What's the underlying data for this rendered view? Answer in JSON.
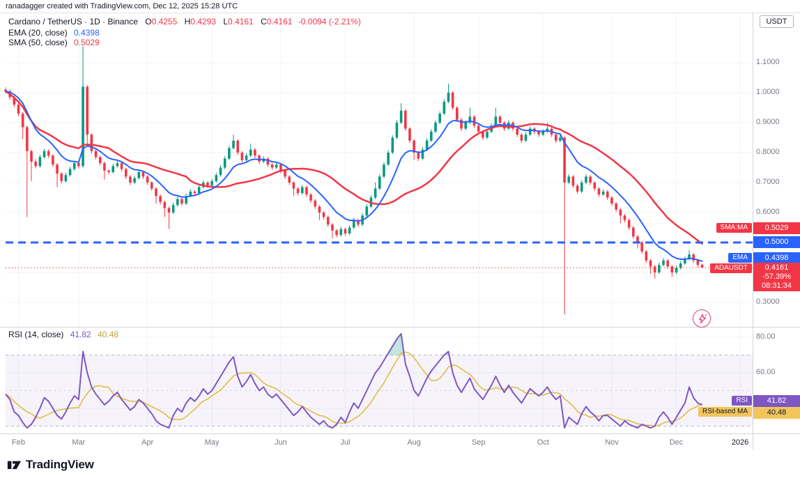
{
  "credit_bar": {
    "text": "ranadagger created with TradingView.com, Dec 12, 2025 15:28 UTC"
  },
  "symbol_row": {
    "title": "Cardano / TetherUS · 1D · Binance",
    "o_label": "O",
    "o": "0.4255",
    "h_label": "H",
    "h": "0.4293",
    "l_label": "L",
    "l": "0.4161",
    "c_label": "C",
    "c": "0.4161",
    "change": "-0.0094 (-2.21%)"
  },
  "indicators": {
    "ema": {
      "label": "EMA (20, close)",
      "value": "0.4398"
    },
    "sma": {
      "label": "SMA (50, close)",
      "value": "0.5029"
    },
    "rsi": {
      "label": "RSI (14, close)",
      "value": "41.82",
      "ma_value": "40.48"
    }
  },
  "price_axis": {
    "currency": "USDT",
    "labels": [
      {
        "text": "1.1000",
        "value": 1.1
      },
      {
        "text": "1.0000",
        "value": 1.0
      },
      {
        "text": "0.9000",
        "value": 0.9
      },
      {
        "text": "0.8000",
        "value": 0.8
      },
      {
        "text": "0.7000",
        "value": 0.7
      },
      {
        "text": "0.6000",
        "value": 0.6
      },
      {
        "text": "0.3000",
        "value": 0.3
      }
    ],
    "tags": {
      "sma": {
        "label": "SMA:MA",
        "value": "0.5029"
      },
      "level": {
        "value": "0.5000"
      },
      "ema": {
        "label": "EMA",
        "value": "0.4398"
      },
      "price": {
        "label": "ADAUSDT",
        "value": "0.4161",
        "percent": "-57.39%",
        "countdown": "08:31:34"
      }
    }
  },
  "rsi_axis": {
    "labels": [
      {
        "text": "80.00",
        "value": 80
      },
      {
        "text": "60.00",
        "value": 60
      }
    ],
    "tags": {
      "rsi": {
        "label": "RSI",
        "value": "41.82"
      },
      "ma": {
        "label": "RSI-based MA",
        "value": "40.48"
      }
    }
  },
  "time_axis": {
    "months": [
      "Feb",
      "Mar",
      "Apr",
      "May",
      "Jun",
      "Jul",
      "Aug",
      "Sep",
      "Oct",
      "Nov",
      "Dec"
    ],
    "year": "2026"
  },
  "footer": {
    "logo_text": "TradingView"
  },
  "colors": {
    "up": "#089981",
    "down": "#f23645",
    "ema": "#2962ff",
    "sma": "#f23645",
    "rsi": "#7e57c2",
    "rsi_ma": "#e2b93b",
    "support_line": "#2962ff",
    "grid": "#f0f3fa",
    "band_fill": "rgba(126,87,194,0.07)",
    "overbought_fill": "rgba(8,153,129,0.25)"
  },
  "chart_data": {
    "type": "candlestick",
    "title": "Cardano / TetherUS 1D Binance with EMA(20), SMA(50), RSI(14)",
    "price_ylim": [
      0.26,
      1.27
    ],
    "rsi_bands": [
      70,
      50,
      30
    ],
    "support_level": 0.5,
    "last_price": 0.4161,
    "indicator_values": {
      "ema20": 0.4398,
      "sma50": 0.5029,
      "rsi14": 41.82,
      "rsi_ma": 40.48
    },
    "month_start_indices": [
      3,
      17,
      33,
      48,
      64,
      79,
      95,
      110,
      125,
      141,
      156
    ],
    "candles": [
      [
        1.01,
        1.018,
        0.997,
        1.005
      ],
      [
        1.005,
        1.01,
        0.977,
        0.985
      ],
      [
        0.985,
        0.99,
        0.952,
        0.96
      ],
      [
        0.96,
        0.968,
        0.922,
        0.93
      ],
      [
        0.93,
        0.935,
        0.845,
        0.885
      ],
      [
        0.885,
        0.89,
        0.585,
        0.805
      ],
      [
        0.805,
        0.81,
        0.705,
        0.77
      ],
      [
        0.77,
        0.778,
        0.747,
        0.755
      ],
      [
        0.755,
        0.793,
        0.75,
        0.785
      ],
      [
        0.785,
        0.813,
        0.78,
        0.805
      ],
      [
        0.805,
        0.812,
        0.782,
        0.79
      ],
      [
        0.79,
        0.795,
        0.752,
        0.76
      ],
      [
        0.76,
        0.765,
        0.685,
        0.73
      ],
      [
        0.73,
        0.735,
        0.697,
        0.705
      ],
      [
        0.705,
        0.733,
        0.7,
        0.725
      ],
      [
        0.725,
        0.753,
        0.72,
        0.745
      ],
      [
        0.745,
        0.773,
        0.74,
        0.765
      ],
      [
        0.765,
        0.77,
        0.747,
        0.755
      ],
      [
        0.755,
        1.155,
        0.75,
        1.02
      ],
      [
        1.02,
        1.025,
        0.82,
        0.86
      ],
      [
        0.86,
        0.865,
        0.797,
        0.805
      ],
      [
        0.805,
        0.81,
        0.777,
        0.785
      ],
      [
        0.785,
        0.79,
        0.757,
        0.765
      ],
      [
        0.765,
        0.77,
        0.71,
        0.74
      ],
      [
        0.74,
        0.743,
        0.727,
        0.735
      ],
      [
        0.735,
        0.763,
        0.73,
        0.755
      ],
      [
        0.755,
        0.773,
        0.75,
        0.765
      ],
      [
        0.765,
        0.77,
        0.737,
        0.745
      ],
      [
        0.745,
        0.75,
        0.712,
        0.72
      ],
      [
        0.72,
        0.725,
        0.692,
        0.7
      ],
      [
        0.7,
        0.723,
        0.695,
        0.715
      ],
      [
        0.715,
        0.743,
        0.71,
        0.735
      ],
      [
        0.735,
        0.74,
        0.712,
        0.72
      ],
      [
        0.72,
        0.725,
        0.692,
        0.7
      ],
      [
        0.7,
        0.705,
        0.672,
        0.68
      ],
      [
        0.68,
        0.685,
        0.63,
        0.655
      ],
      [
        0.655,
        0.66,
        0.627,
        0.635
      ],
      [
        0.635,
        0.64,
        0.585,
        0.615
      ],
      [
        0.615,
        0.62,
        0.545,
        0.6
      ],
      [
        0.6,
        0.633,
        0.595,
        0.625
      ],
      [
        0.625,
        0.653,
        0.62,
        0.645
      ],
      [
        0.645,
        0.65,
        0.622,
        0.63
      ],
      [
        0.63,
        0.663,
        0.625,
        0.655
      ],
      [
        0.655,
        0.678,
        0.65,
        0.67
      ],
      [
        0.67,
        0.675,
        0.657,
        0.665
      ],
      [
        0.665,
        0.693,
        0.66,
        0.685
      ],
      [
        0.685,
        0.708,
        0.68,
        0.7
      ],
      [
        0.7,
        0.705,
        0.682,
        0.69
      ],
      [
        0.69,
        0.713,
        0.685,
        0.705
      ],
      [
        0.705,
        0.733,
        0.7,
        0.725
      ],
      [
        0.725,
        0.758,
        0.72,
        0.75
      ],
      [
        0.75,
        0.788,
        0.745,
        0.78
      ],
      [
        0.78,
        0.823,
        0.775,
        0.815
      ],
      [
        0.815,
        0.86,
        0.81,
        0.84
      ],
      [
        0.84,
        0.845,
        0.792,
        0.8
      ],
      [
        0.8,
        0.805,
        0.767,
        0.775
      ],
      [
        0.775,
        0.798,
        0.77,
        0.79
      ],
      [
        0.79,
        0.83,
        0.785,
        0.81
      ],
      [
        0.81,
        0.815,
        0.782,
        0.79
      ],
      [
        0.79,
        0.795,
        0.762,
        0.77
      ],
      [
        0.77,
        0.788,
        0.765,
        0.78
      ],
      [
        0.78,
        0.785,
        0.752,
        0.76
      ],
      [
        0.76,
        0.765,
        0.742,
        0.75
      ],
      [
        0.75,
        0.768,
        0.745,
        0.76
      ],
      [
        0.76,
        0.765,
        0.732,
        0.74
      ],
      [
        0.74,
        0.745,
        0.712,
        0.72
      ],
      [
        0.72,
        0.725,
        0.692,
        0.7
      ],
      [
        0.7,
        0.705,
        0.655,
        0.68
      ],
      [
        0.68,
        0.685,
        0.657,
        0.665
      ],
      [
        0.665,
        0.693,
        0.66,
        0.685
      ],
      [
        0.685,
        0.69,
        0.652,
        0.66
      ],
      [
        0.66,
        0.665,
        0.632,
        0.64
      ],
      [
        0.64,
        0.645,
        0.612,
        0.62
      ],
      [
        0.62,
        0.625,
        0.575,
        0.6
      ],
      [
        0.6,
        0.605,
        0.577,
        0.585
      ],
      [
        0.585,
        0.59,
        0.552,
        0.56
      ],
      [
        0.56,
        0.565,
        0.515,
        0.54
      ],
      [
        0.54,
        0.545,
        0.517,
        0.525
      ],
      [
        0.525,
        0.553,
        0.52,
        0.545
      ],
      [
        0.545,
        0.55,
        0.522,
        0.53
      ],
      [
        0.53,
        0.558,
        0.525,
        0.55
      ],
      [
        0.55,
        0.583,
        0.545,
        0.575
      ],
      [
        0.575,
        0.58,
        0.552,
        0.56
      ],
      [
        0.56,
        0.598,
        0.555,
        0.59
      ],
      [
        0.59,
        0.628,
        0.585,
        0.62
      ],
      [
        0.62,
        0.658,
        0.615,
        0.65
      ],
      [
        0.65,
        0.7,
        0.645,
        0.68
      ],
      [
        0.68,
        0.728,
        0.675,
        0.72
      ],
      [
        0.72,
        0.768,
        0.715,
        0.76
      ],
      [
        0.76,
        0.808,
        0.755,
        0.8
      ],
      [
        0.8,
        0.858,
        0.795,
        0.85
      ],
      [
        0.85,
        0.908,
        0.845,
        0.9
      ],
      [
        0.9,
        0.965,
        0.895,
        0.94
      ],
      [
        0.94,
        0.945,
        0.872,
        0.88
      ],
      [
        0.88,
        0.885,
        0.832,
        0.84
      ],
      [
        0.84,
        0.845,
        0.775,
        0.8
      ],
      [
        0.8,
        0.805,
        0.772,
        0.78
      ],
      [
        0.78,
        0.818,
        0.775,
        0.81
      ],
      [
        0.81,
        0.848,
        0.805,
        0.84
      ],
      [
        0.84,
        0.878,
        0.835,
        0.87
      ],
      [
        0.87,
        0.908,
        0.865,
        0.9
      ],
      [
        0.9,
        0.938,
        0.895,
        0.93
      ],
      [
        0.93,
        0.978,
        0.925,
        0.97
      ],
      [
        0.97,
        1.03,
        0.965,
        1.0
      ],
      [
        1.0,
        1.005,
        0.942,
        0.95
      ],
      [
        0.95,
        0.955,
        0.902,
        0.91
      ],
      [
        0.91,
        0.915,
        0.872,
        0.88
      ],
      [
        0.88,
        0.908,
        0.875,
        0.9
      ],
      [
        0.9,
        0.95,
        0.895,
        0.92
      ],
      [
        0.92,
        0.925,
        0.882,
        0.89
      ],
      [
        0.89,
        0.895,
        0.862,
        0.87
      ],
      [
        0.87,
        0.875,
        0.842,
        0.85
      ],
      [
        0.85,
        0.878,
        0.845,
        0.87
      ],
      [
        0.87,
        0.898,
        0.865,
        0.89
      ],
      [
        0.89,
        0.95,
        0.885,
        0.92
      ],
      [
        0.92,
        0.925,
        0.892,
        0.9
      ],
      [
        0.9,
        0.905,
        0.872,
        0.88
      ],
      [
        0.88,
        0.908,
        0.875,
        0.9
      ],
      [
        0.9,
        0.905,
        0.872,
        0.88
      ],
      [
        0.88,
        0.885,
        0.852,
        0.86
      ],
      [
        0.86,
        0.865,
        0.832,
        0.84
      ],
      [
        0.84,
        0.868,
        0.835,
        0.86
      ],
      [
        0.86,
        0.888,
        0.855,
        0.88
      ],
      [
        0.88,
        0.885,
        0.862,
        0.87
      ],
      [
        0.87,
        0.875,
        0.852,
        0.86
      ],
      [
        0.86,
        0.878,
        0.855,
        0.87
      ],
      [
        0.87,
        0.9,
        0.865,
        0.88
      ],
      [
        0.88,
        0.885,
        0.852,
        0.86
      ],
      [
        0.86,
        0.865,
        0.832,
        0.84
      ],
      [
        0.84,
        0.858,
        0.835,
        0.85
      ],
      [
        0.85,
        0.855,
        0.26,
        0.7
      ],
      [
        0.7,
        0.728,
        0.695,
        0.72
      ],
      [
        0.72,
        0.725,
        0.682,
        0.69
      ],
      [
        0.69,
        0.695,
        0.662,
        0.67
      ],
      [
        0.67,
        0.708,
        0.665,
        0.7
      ],
      [
        0.7,
        0.728,
        0.695,
        0.72
      ],
      [
        0.72,
        0.725,
        0.692,
        0.7
      ],
      [
        0.7,
        0.705,
        0.672,
        0.68
      ],
      [
        0.68,
        0.685,
        0.652,
        0.66
      ],
      [
        0.66,
        0.678,
        0.655,
        0.67
      ],
      [
        0.67,
        0.675,
        0.642,
        0.65
      ],
      [
        0.65,
        0.655,
        0.622,
        0.63
      ],
      [
        0.63,
        0.635,
        0.602,
        0.61
      ],
      [
        0.61,
        0.615,
        0.565,
        0.59
      ],
      [
        0.59,
        0.595,
        0.567,
        0.575
      ],
      [
        0.575,
        0.58,
        0.542,
        0.55
      ],
      [
        0.55,
        0.555,
        0.512,
        0.52
      ],
      [
        0.52,
        0.525,
        0.48,
        0.5
      ],
      [
        0.5,
        0.505,
        0.462,
        0.47
      ],
      [
        0.47,
        0.475,
        0.432,
        0.44
      ],
      [
        0.44,
        0.445,
        0.395,
        0.42
      ],
      [
        0.42,
        0.425,
        0.38,
        0.4
      ],
      [
        0.4,
        0.433,
        0.395,
        0.425
      ],
      [
        0.425,
        0.448,
        0.42,
        0.44
      ],
      [
        0.44,
        0.445,
        0.412,
        0.42
      ],
      [
        0.42,
        0.425,
        0.385,
        0.4
      ],
      [
        0.4,
        0.423,
        0.395,
        0.415
      ],
      [
        0.415,
        0.438,
        0.41,
        0.43
      ],
      [
        0.43,
        0.453,
        0.425,
        0.445
      ],
      [
        0.445,
        0.475,
        0.44,
        0.46
      ],
      [
        0.46,
        0.465,
        0.432,
        0.44
      ],
      [
        0.44,
        0.445,
        0.417,
        0.425
      ],
      [
        0.4255,
        0.4293,
        0.4161,
        0.4161
      ]
    ],
    "rsi": [
      48,
      45,
      38,
      36,
      32,
      29,
      31,
      35,
      40,
      46,
      44,
      40,
      36,
      34,
      38,
      43,
      47,
      45,
      72,
      60,
      52,
      48,
      45,
      42,
      44,
      47,
      49,
      45,
      42,
      39,
      41,
      45,
      43,
      40,
      37,
      33,
      31,
      30,
      29,
      36,
      40,
      38,
      43,
      46,
      44,
      47,
      51,
      48,
      50,
      54,
      58,
      62,
      66,
      69,
      58,
      52,
      55,
      59,
      54,
      50,
      52,
      48,
      46,
      48,
      45,
      42,
      39,
      36,
      38,
      41,
      38,
      35,
      33,
      31,
      33,
      30,
      29,
      31,
      35,
      32,
      38,
      43,
      40,
      45,
      50,
      55,
      60,
      63,
      67,
      71,
      75,
      79,
      82,
      65,
      58,
      50,
      47,
      52,
      57,
      61,
      64,
      67,
      70,
      72,
      60,
      53,
      49,
      53,
      57,
      51,
      48,
      45,
      49,
      53,
      58,
      53,
      49,
      53,
      49,
      46,
      43,
      47,
      51,
      49,
      47,
      49,
      52,
      48,
      45,
      47,
      29,
      35,
      33,
      31,
      37,
      41,
      38,
      36,
      33,
      36,
      36,
      34,
      32,
      30,
      33,
      31,
      30,
      29,
      31,
      30,
      29,
      30,
      35,
      38,
      35,
      31,
      35,
      39,
      43,
      52,
      46,
      43,
      41.82
    ]
  }
}
